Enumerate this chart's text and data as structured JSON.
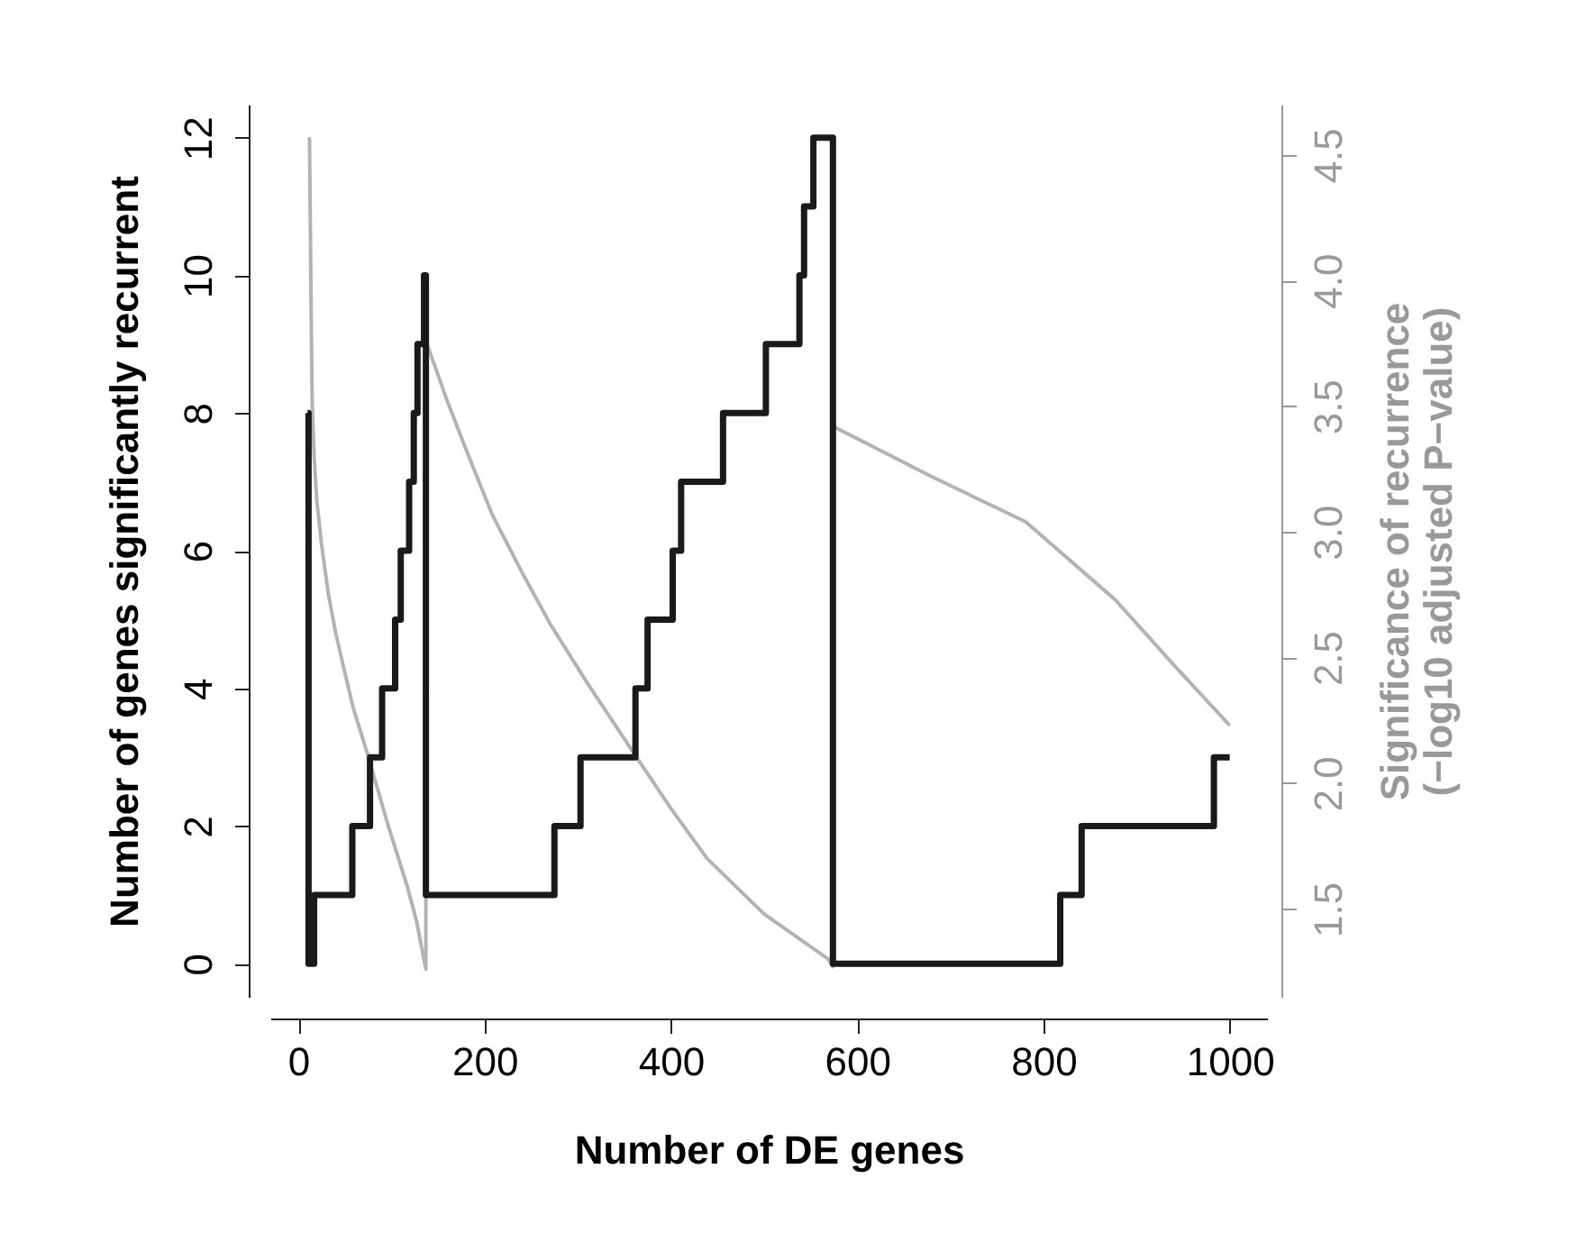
{
  "chart_data": {
    "type": "line",
    "xlabel": "Number of DE genes",
    "ylabel": "Number of genes significantly recurrent",
    "y2label": "Significance of recurrence\n(−log10 adjusted P−value)",
    "xlim": [
      -30,
      1040
    ],
    "xticks": [
      0,
      200,
      400,
      600,
      800,
      1000
    ],
    "ylim": [
      -0.48,
      12.48
    ],
    "yticks": [
      0,
      2,
      4,
      6,
      8,
      10,
      12
    ],
    "y2lim": [
      1.15,
      4.7
    ],
    "y2ticks": [
      1.5,
      {
        "value": 2,
        "label": "2.0"
      },
      2.5,
      {
        "value": 3,
        "label": "3.0"
      },
      3.5,
      {
        "value": 4,
        "label": "4.0"
      },
      4.5
    ],
    "grid": false,
    "line_style": "solid",
    "series": [
      {
        "axis": "y2",
        "color": "#b3b3b3",
        "x": [
          12,
          13,
          14,
          15,
          17,
          20,
          25,
          32,
          40,
          50,
          59,
          74,
          95,
          117,
          127,
          137,
          137,
          160,
          182,
          208,
          240,
          271,
          310,
          362,
          400,
          439,
          500,
          569,
          574,
          574,
          680,
          781,
          877,
          940,
          1000
        ],
        "values": [
          4.57,
          4.2,
          3.8,
          3.5,
          3.3,
          3.12,
          2.95,
          2.76,
          2.6,
          2.44,
          2.3,
          2.12,
          1.85,
          1.59,
          1.45,
          1.26,
          3.76,
          3.52,
          3.31,
          3.07,
          2.84,
          2.63,
          2.4,
          2.11,
          1.9,
          1.7,
          1.48,
          1.3,
          1.27,
          3.42,
          3.22,
          3.04,
          2.73,
          2.47,
          2.23
        ]
      },
      {
        "type": "step",
        "color": "#1a1a1a",
        "x": [
          10,
          11,
          17,
          58,
          77,
          90,
          104,
          110,
          119,
          124,
          128,
          135,
          137,
          275,
          303,
          362,
          375,
          402,
          411,
          456,
          502,
          538,
          543,
          553,
          574,
          818,
          841,
          983,
          1000
        ],
        "values": [
          8,
          0,
          1,
          2,
          3,
          4,
          5,
          6,
          7,
          8,
          9,
          10,
          1,
          2,
          3,
          4,
          5,
          6,
          7,
          8,
          9,
          10,
          11,
          12,
          0,
          1,
          2,
          3,
          3
        ]
      }
    ]
  }
}
